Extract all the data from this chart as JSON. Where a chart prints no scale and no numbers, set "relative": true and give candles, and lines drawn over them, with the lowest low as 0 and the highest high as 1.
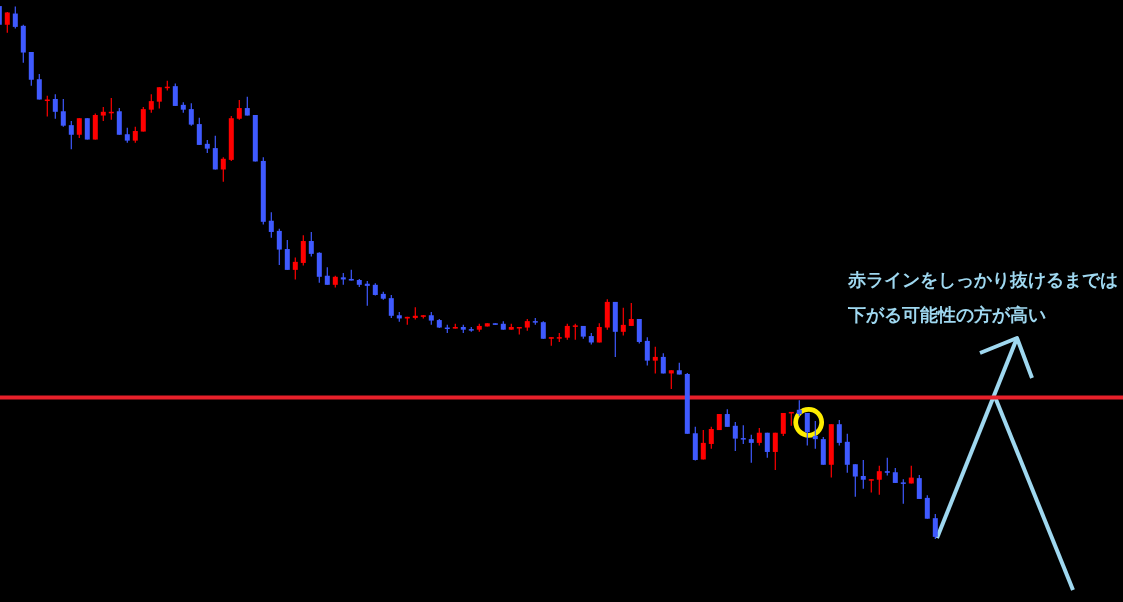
{
  "chart_data": {
    "type": "candlestick",
    "relative": true,
    "categories": [
      null,
      null,
      null,
      null,
      null,
      null,
      null,
      null,
      null,
      null,
      null,
      null,
      null,
      null,
      null,
      null,
      null,
      null,
      null,
      null,
      null,
      null,
      null,
      null,
      null,
      null,
      null,
      null,
      null,
      null,
      null,
      null,
      null,
      null,
      null,
      null,
      null,
      null,
      null,
      null,
      null,
      null,
      null,
      null,
      null,
      null,
      null,
      null,
      null,
      null,
      null,
      null,
      null,
      null,
      null,
      null,
      null,
      null,
      null,
      null,
      null,
      null,
      null,
      null,
      null,
      null,
      null,
      null,
      null,
      null,
      null,
      null,
      null,
      null,
      null,
      null,
      null,
      null,
      null,
      null,
      null,
      null,
      null,
      null,
      null,
      null,
      null,
      null,
      null,
      null,
      null,
      null,
      null,
      null,
      null,
      null,
      null,
      null,
      null,
      null,
      null,
      null,
      null,
      null,
      null,
      null,
      null,
      null,
      null,
      null,
      null,
      null,
      null,
      null,
      null,
      null,
      null,
      null
    ],
    "ohlc": [
      [
        0.998,
        1.0,
        0.961,
        0.963
      ],
      [
        0.963,
        0.987,
        0.948,
        0.986
      ],
      [
        0.984,
        0.997,
        0.956,
        0.959
      ],
      [
        0.961,
        0.963,
        0.892,
        0.911
      ],
      [
        0.912,
        0.912,
        0.849,
        0.86
      ],
      [
        0.861,
        0.871,
        0.823,
        0.823
      ],
      [
        0.822,
        0.83,
        0.791,
        0.823
      ],
      [
        0.824,
        0.833,
        0.787,
        0.8
      ],
      [
        0.801,
        0.824,
        0.772,
        0.774
      ],
      [
        0.775,
        0.783,
        0.73,
        0.757
      ],
      [
        0.757,
        0.788,
        0.751,
        0.788
      ],
      [
        0.788,
        0.788,
        0.748,
        0.748
      ],
      [
        0.748,
        0.797,
        0.748,
        0.794
      ],
      [
        0.793,
        0.809,
        0.783,
        0.8
      ],
      [
        0.799,
        0.826,
        0.785,
        0.8
      ],
      [
        0.801,
        0.807,
        0.757,
        0.757
      ],
      [
        0.758,
        0.77,
        0.742,
        0.746
      ],
      [
        0.746,
        0.772,
        0.742,
        0.764
      ],
      [
        0.763,
        0.809,
        0.763,
        0.805
      ],
      [
        0.804,
        0.833,
        0.798,
        0.82
      ],
      [
        0.819,
        0.846,
        0.806,
        0.846
      ],
      [
        0.846,
        0.858,
        0.84,
        0.847
      ],
      [
        0.848,
        0.853,
        0.811,
        0.811
      ],
      [
        0.813,
        0.818,
        0.798,
        0.804
      ],
      [
        0.805,
        0.816,
        0.774,
        0.776
      ],
      [
        0.777,
        0.789,
        0.738,
        0.738
      ],
      [
        0.74,
        0.747,
        0.723,
        0.731
      ],
      [
        0.732,
        0.755,
        0.692,
        0.692
      ],
      [
        0.692,
        0.715,
        0.669,
        0.712
      ],
      [
        0.71,
        0.792,
        0.708,
        0.788
      ],
      [
        0.787,
        0.822,
        0.785,
        0.807
      ],
      [
        0.807,
        0.828,
        0.793,
        0.793
      ],
      [
        0.794,
        0.794,
        0.707,
        0.707
      ],
      [
        0.708,
        0.715,
        0.589,
        0.594
      ],
      [
        0.596,
        0.612,
        0.564,
        0.575
      ],
      [
        0.577,
        0.581,
        0.513,
        0.542
      ],
      [
        0.543,
        0.56,
        0.504,
        0.504
      ],
      [
        0.504,
        0.527,
        0.486,
        0.519
      ],
      [
        0.517,
        0.569,
        0.512,
        0.558
      ],
      [
        0.558,
        0.575,
        0.529,
        0.534
      ],
      [
        0.536,
        0.537,
        0.48,
        0.491
      ],
      [
        0.493,
        0.509,
        0.476,
        0.476
      ],
      [
        0.476,
        0.493,
        0.471,
        0.491
      ],
      [
        0.49,
        0.498,
        0.476,
        0.486
      ],
      [
        0.487,
        0.504,
        0.484,
        0.484
      ],
      [
        0.485,
        0.487,
        0.472,
        0.476
      ],
      [
        0.478,
        0.483,
        0.437,
        0.474
      ],
      [
        0.476,
        0.479,
        0.456,
        0.457
      ],
      [
        0.459,
        0.463,
        0.448,
        0.45
      ],
      [
        0.451,
        0.457,
        0.414,
        0.418
      ],
      [
        0.419,
        0.425,
        0.407,
        0.413
      ],
      [
        0.413,
        0.416,
        0.401,
        0.416
      ],
      [
        0.414,
        0.434,
        0.411,
        0.418
      ],
      [
        0.416,
        0.419,
        0.413,
        0.419
      ],
      [
        0.419,
        0.425,
        0.401,
        0.409
      ],
      [
        0.41,
        0.412,
        0.395,
        0.396
      ],
      [
        0.396,
        0.401,
        0.386,
        0.394
      ],
      [
        0.394,
        0.403,
        0.394,
        0.397
      ],
      [
        0.397,
        0.401,
        0.386,
        0.392
      ],
      [
        0.393,
        0.397,
        0.388,
        0.392
      ],
      [
        0.392,
        0.403,
        0.388,
        0.399
      ],
      [
        0.398,
        0.404,
        0.398,
        0.404
      ],
      [
        0.404,
        0.404,
        0.401,
        0.401
      ],
      [
        0.403,
        0.408,
        0.392,
        0.392
      ],
      [
        0.392,
        0.403,
        0.392,
        0.397
      ],
      [
        0.396,
        0.397,
        0.383,
        0.397
      ],
      [
        0.396,
        0.412,
        0.39,
        0.408
      ],
      [
        0.408,
        0.414,
        0.401,
        0.406
      ],
      [
        0.406,
        0.408,
        0.375,
        0.375
      ],
      [
        0.375,
        0.378,
        0.362,
        0.378
      ],
      [
        0.377,
        0.386,
        0.369,
        0.378
      ],
      [
        0.377,
        0.403,
        0.373,
        0.399
      ],
      [
        0.399,
        0.403,
        0.373,
        0.4
      ],
      [
        0.399,
        0.399,
        0.375,
        0.379
      ],
      [
        0.38,
        0.386,
        0.364,
        0.368
      ],
      [
        0.368,
        0.404,
        0.368,
        0.397
      ],
      [
        0.396,
        0.449,
        0.392,
        0.444
      ],
      [
        0.444,
        0.444,
        0.341,
        0.388
      ],
      [
        0.388,
        0.433,
        0.381,
        0.401
      ],
      [
        0.399,
        0.442,
        0.399,
        0.412
      ],
      [
        0.412,
        0.412,
        0.366,
        0.369
      ],
      [
        0.371,
        0.378,
        0.325,
        0.334
      ],
      [
        0.334,
        0.36,
        0.31,
        0.341
      ],
      [
        0.341,
        0.348,
        0.31,
        0.31
      ],
      [
        0.31,
        0.316,
        0.281,
        0.316
      ],
      [
        0.316,
        0.33,
        0.308,
        0.308
      ],
      [
        0.309,
        0.311,
        0.197,
        0.197
      ],
      [
        0.198,
        0.21,
        0.147,
        0.148
      ],
      [
        0.149,
        0.204,
        0.149,
        0.18
      ],
      [
        0.178,
        0.21,
        0.169,
        0.206
      ],
      [
        0.204,
        0.234,
        0.204,
        0.234
      ],
      [
        0.234,
        0.243,
        0.21,
        0.21
      ],
      [
        0.212,
        0.219,
        0.165,
        0.188
      ],
      [
        0.189,
        0.213,
        0.178,
        0.187
      ],
      [
        0.187,
        0.195,
        0.143,
        0.18
      ],
      [
        0.18,
        0.208,
        0.175,
        0.199
      ],
      [
        0.199,
        0.199,
        0.152,
        0.163
      ],
      [
        0.163,
        0.199,
        0.129,
        0.199
      ],
      [
        0.197,
        0.236,
        0.193,
        0.236
      ],
      [
        0.235,
        0.238,
        0.212,
        0.238
      ],
      [
        0.242,
        0.26,
        0.23,
        0.234
      ],
      [
        0.236,
        0.236,
        0.175,
        0.2
      ],
      [
        0.193,
        0.221,
        0.169,
        0.187
      ],
      [
        0.187,
        0.191,
        0.139,
        0.139
      ],
      [
        0.139,
        0.215,
        0.115,
        0.215
      ],
      [
        0.215,
        0.223,
        0.175,
        0.18
      ],
      [
        0.182,
        0.197,
        0.124,
        0.139
      ],
      [
        0.14,
        0.14,
        0.079,
        0.117
      ],
      [
        0.118,
        0.148,
        0.094,
        0.111
      ],
      [
        0.111,
        0.112,
        0.087,
        0.112
      ],
      [
        0.111,
        0.137,
        0.083,
        0.127
      ],
      [
        0.127,
        0.152,
        0.119,
        0.124
      ],
      [
        0.125,
        0.133,
        0.105,
        0.105
      ],
      [
        0.106,
        0.112,
        0.066,
        0.105
      ],
      [
        0.104,
        0.137,
        0.104,
        0.115
      ],
      [
        0.114,
        0.12,
        0.075,
        0.075
      ],
      [
        0.077,
        0.082,
        0.038,
        0.038
      ],
      [
        0.039,
        0.047,
        0,
        0.004
      ]
    ],
    "colors": [
      "#3f5aff",
      "#ff0000",
      "#3f5aff",
      "#3f5aff",
      "#3f5aff",
      "#3f5aff",
      "#ff0000",
      "#3f5aff",
      "#3f5aff",
      "#3f5aff",
      "#ff0000",
      "#3f5aff",
      "#ff0000",
      "#ff0000",
      "#ff0000",
      "#3f5aff",
      "#3f5aff",
      "#ff0000",
      "#ff0000",
      "#ff0000",
      "#ff0000",
      "#ff0000",
      "#3f5aff",
      "#3f5aff",
      "#3f5aff",
      "#3f5aff",
      "#3f5aff",
      "#3f5aff",
      "#ff0000",
      "#ff0000",
      "#ff0000",
      "#3f5aff",
      "#3f5aff",
      "#3f5aff",
      "#3f5aff",
      "#3f5aff",
      "#3f5aff",
      "#ff0000",
      "#ff0000",
      "#3f5aff",
      "#3f5aff",
      "#3f5aff",
      "#ff0000",
      "#3f5aff",
      "#3f5aff",
      "#3f5aff",
      "#3f5aff",
      "#3f5aff",
      "#3f5aff",
      "#3f5aff",
      "#3f5aff",
      "#ff0000",
      "#ff0000",
      "#ff0000",
      "#3f5aff",
      "#3f5aff",
      "#3f5aff",
      "#ff0000",
      "#3f5aff",
      "#3f5aff",
      "#ff0000",
      "#ff0000",
      "#3f5aff",
      "#3f5aff",
      "#ff0000",
      "#ff0000",
      "#ff0000",
      "#3f5aff",
      "#3f5aff",
      "#ff0000",
      "#ff0000",
      "#ff0000",
      "#ff0000",
      "#3f5aff",
      "#3f5aff",
      "#ff0000",
      "#ff0000",
      "#3f5aff",
      "#ff0000",
      "#ff0000",
      "#3f5aff",
      "#3f5aff",
      "#ff0000",
      "#3f5aff",
      "#ff0000",
      "#3f5aff",
      "#3f5aff",
      "#3f5aff",
      "#ff0000",
      "#ff0000",
      "#ff0000",
      "#3f5aff",
      "#3f5aff",
      "#3f5aff",
      "#3f5aff",
      "#ff0000",
      "#3f5aff",
      "#ff0000",
      "#ff0000",
      "#ff0000",
      "#3f5aff",
      "#3f5aff",
      "#3f5aff",
      "#3f5aff",
      "#ff0000",
      "#3f5aff",
      "#3f5aff",
      "#3f5aff",
      "#3f5aff",
      "#ff0000",
      "#ff0000",
      "#3f5aff",
      "#3f5aff",
      "#3f5aff",
      "#ff0000",
      "#3f5aff",
      "#3f5aff",
      "#3f5aff"
    ],
    "ref_lines": [
      {
        "axis": "y",
        "value": 0.265,
        "color": "#e8202a"
      }
    ],
    "annotations": [
      "赤ラインをしっかり抜けるまでは",
      "下がる可能性の方が高い"
    ]
  }
}
